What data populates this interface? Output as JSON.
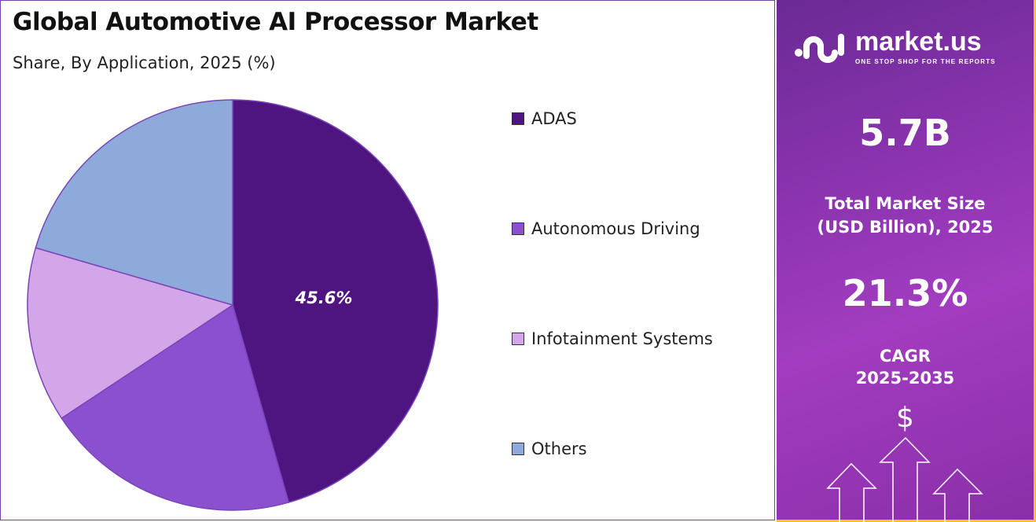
{
  "header": {
    "title": "Global Automotive AI Processor Market",
    "subtitle": "Share, By Application, 2025 (%)"
  },
  "chart_data": {
    "type": "pie",
    "title": "Global Automotive AI Processor Market",
    "subtitle": "Share, By Application, 2025 (%)",
    "categories": [
      "ADAS",
      "Autonomous Driving",
      "Infotainment Systems",
      "Others"
    ],
    "values": [
      45.6,
      20.1,
      13.8,
      20.5
    ],
    "colors": [
      "#4e1580",
      "#8a50cf",
      "#d3a6ea",
      "#8eaadb"
    ],
    "data_labels": [
      "45.6%",
      "",
      "",
      ""
    ],
    "legend_position": "right"
  },
  "panel": {
    "logo_name": "market.us",
    "logo_tagline": "ONE STOP SHOP FOR THE REPORTS",
    "market_size": "5.7B",
    "market_size_label_1": "Total Market Size",
    "market_size_label_2": "(USD Billion), 2025",
    "cagr": "21.3%",
    "cagr_label_1": "CAGR",
    "cagr_label_2": "2025-2035",
    "dollar_symbol": "$",
    "border_color": "#f5c22a"
  }
}
